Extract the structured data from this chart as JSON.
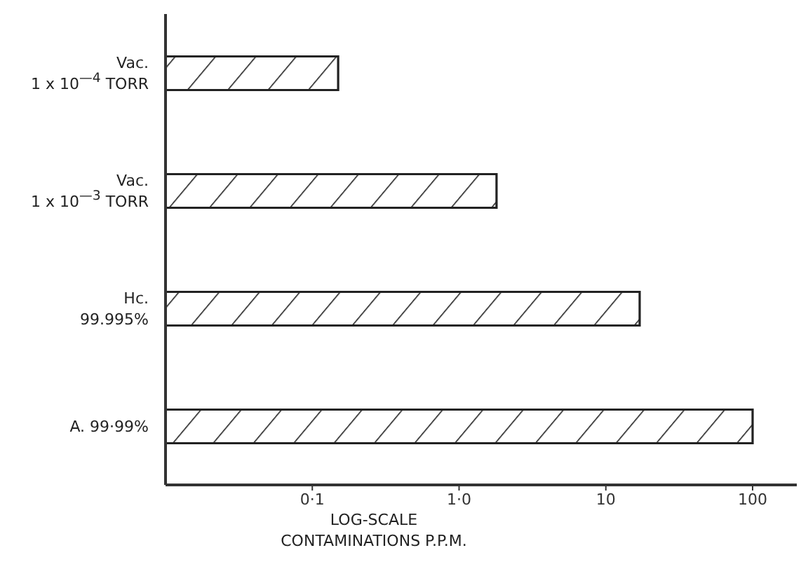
{
  "chart_data": {
    "type": "bar",
    "orientation": "horizontal",
    "log": "x",
    "categories": [
      "Vac.\n1 x 10$^{—4}$ TORR",
      "Vac.\n1 x 10$^{—3}$ TORR",
      "Hc.\n99.995%",
      "A. 99·99%"
    ],
    "values": [
      0.15,
      1.8,
      17,
      100
    ],
    "color": "#222222",
    "xlim": [
      0.01,
      200
    ],
    "xticks": [
      {
        "value": 0.1,
        "label": "0·1"
      },
      {
        "value": 1,
        "label": "1·0"
      },
      10,
      100
    ],
    "xlabel": "LOG-SCALE\nCONTAMINATIONS P.P.M."
  }
}
